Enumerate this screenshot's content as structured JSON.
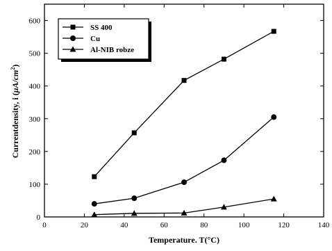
{
  "chart_data": {
    "type": "line",
    "title": "",
    "xlabel": "Temperature. T(°C)",
    "ylabel_main": "Currentdensity, i (",
    "ylabel_unit": "μA/cm",
    "ylabel_sup": "2",
    "ylabel_close": ")",
    "xlim": [
      0,
      140
    ],
    "ylim": [
      0,
      650
    ],
    "xticks": [
      0,
      20,
      40,
      60,
      80,
      100,
      120,
      140
    ],
    "yticks": [
      0,
      100,
      200,
      300,
      400,
      500,
      600
    ],
    "grid": false,
    "legend_position": "top-left",
    "x": [
      25,
      45,
      70,
      90,
      115
    ],
    "series": [
      {
        "name": "SS 400",
        "marker": "square",
        "values": [
          123,
          257,
          417,
          482,
          567
        ]
      },
      {
        "name": "Cu",
        "marker": "circle",
        "values": [
          40,
          57,
          106,
          173,
          305
        ]
      },
      {
        "name": "Al-NIB robze",
        "marker": "triangle",
        "values": [
          7,
          11,
          12,
          30,
          55
        ]
      }
    ]
  }
}
